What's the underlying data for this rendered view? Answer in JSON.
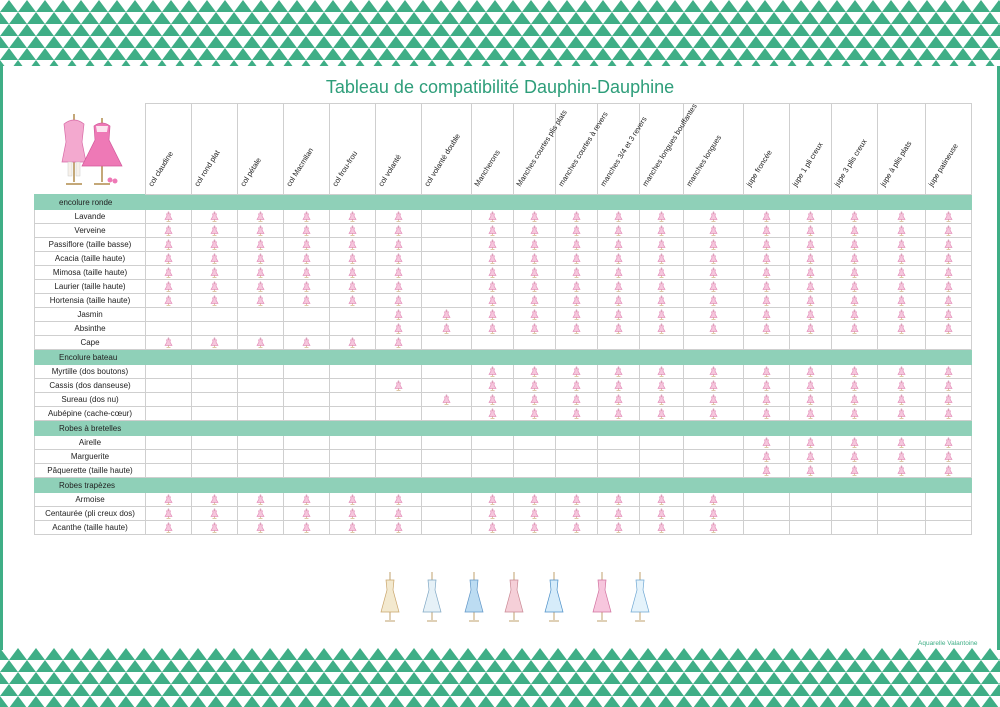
{
  "title": "Tableau de compatibilité Dauphin-Dauphine",
  "credit": "Aquarelle Valantoine",
  "colors": {
    "accent": "#3fae86",
    "section_bg": "#8fd0b8",
    "mark": "#e58bb5"
  },
  "icons": {
    "mark": "dress-form-icon",
    "header": "dress-mannequins-illustration",
    "footer": "dress-collection-illustration"
  },
  "columns": [
    "col claudine",
    "col rond plat",
    "col pétale",
    "col Macmilan",
    "col frou-frou",
    "col volanté",
    "col volanté double",
    "Mancherons",
    "Manches courtes plis plats",
    "manches courtes à revers",
    "manches 3/4 et 3 revers",
    "manches longues bouffantes",
    "manches longues",
    "jupe froncée",
    "jupe 1 pli creux",
    "jupe 3 plis creux",
    "jupe à plis plats",
    "jupe patineuse"
  ],
  "sections": [
    {
      "label": "encolure ronde",
      "rows": [
        {
          "name": "Lavande",
          "marks": [
            1,
            1,
            1,
            1,
            1,
            1,
            0,
            1,
            1,
            1,
            1,
            1,
            1,
            1,
            1,
            1,
            1,
            1
          ]
        },
        {
          "name": "Verveine",
          "marks": [
            1,
            1,
            1,
            1,
            1,
            1,
            0,
            1,
            1,
            1,
            1,
            1,
            1,
            1,
            1,
            1,
            1,
            1
          ]
        },
        {
          "name": "Passiflore (taille basse)",
          "marks": [
            1,
            1,
            1,
            1,
            1,
            1,
            0,
            1,
            1,
            1,
            1,
            1,
            1,
            1,
            1,
            1,
            1,
            1
          ]
        },
        {
          "name": "Acacia (taille haute)",
          "marks": [
            1,
            1,
            1,
            1,
            1,
            1,
            0,
            1,
            1,
            1,
            1,
            1,
            1,
            1,
            1,
            1,
            1,
            1
          ]
        },
        {
          "name": "Mimosa (taille haute)",
          "marks": [
            1,
            1,
            1,
            1,
            1,
            1,
            0,
            1,
            1,
            1,
            1,
            1,
            1,
            1,
            1,
            1,
            1,
            1
          ]
        },
        {
          "name": "Laurier (taille haute)",
          "marks": [
            1,
            1,
            1,
            1,
            1,
            1,
            0,
            1,
            1,
            1,
            1,
            1,
            1,
            1,
            1,
            1,
            1,
            1
          ]
        },
        {
          "name": "Hortensia (taille haute)",
          "marks": [
            1,
            1,
            1,
            1,
            1,
            1,
            0,
            1,
            1,
            1,
            1,
            1,
            1,
            1,
            1,
            1,
            1,
            1
          ]
        },
        {
          "name": "Jasmin",
          "marks": [
            0,
            0,
            0,
            0,
            0,
            1,
            1,
            1,
            1,
            1,
            1,
            1,
            1,
            1,
            1,
            1,
            1,
            1
          ]
        },
        {
          "name": "Absinthe",
          "marks": [
            0,
            0,
            0,
            0,
            0,
            1,
            1,
            1,
            1,
            1,
            1,
            1,
            1,
            1,
            1,
            1,
            1,
            1
          ]
        },
        {
          "name": "Cape",
          "marks": [
            1,
            1,
            1,
            1,
            1,
            1,
            0,
            0,
            0,
            0,
            0,
            0,
            0,
            0,
            0,
            0,
            0,
            0
          ]
        }
      ]
    },
    {
      "label": "Encolure bateau",
      "rows": [
        {
          "name": "Myrtille (dos boutons)",
          "marks": [
            0,
            0,
            0,
            0,
            0,
            0,
            0,
            1,
            1,
            1,
            1,
            1,
            1,
            1,
            1,
            1,
            1,
            1
          ]
        },
        {
          "name": "Cassis (dos danseuse)",
          "marks": [
            0,
            0,
            0,
            0,
            0,
            1,
            0,
            1,
            1,
            1,
            1,
            1,
            1,
            1,
            1,
            1,
            1,
            1
          ]
        },
        {
          "name": "Sureau (dos nu)",
          "marks": [
            0,
            0,
            0,
            0,
            0,
            0,
            1,
            1,
            1,
            1,
            1,
            1,
            1,
            1,
            1,
            1,
            1,
            1
          ]
        },
        {
          "name": "Aubépine (cache-cœur)",
          "marks": [
            0,
            0,
            0,
            0,
            0,
            0,
            0,
            1,
            1,
            1,
            1,
            1,
            1,
            1,
            1,
            1,
            1,
            1
          ]
        }
      ]
    },
    {
      "label": "Robes à bretelles",
      "rows": [
        {
          "name": "Airelle",
          "marks": [
            0,
            0,
            0,
            0,
            0,
            0,
            0,
            0,
            0,
            0,
            0,
            0,
            0,
            1,
            1,
            1,
            1,
            1
          ]
        },
        {
          "name": "Marguerite",
          "marks": [
            0,
            0,
            0,
            0,
            0,
            0,
            0,
            0,
            0,
            0,
            0,
            0,
            0,
            1,
            1,
            1,
            1,
            1
          ]
        },
        {
          "name": "Pâquerette (taille haute)",
          "marks": [
            0,
            0,
            0,
            0,
            0,
            0,
            0,
            0,
            0,
            0,
            0,
            0,
            0,
            1,
            1,
            1,
            1,
            1
          ]
        }
      ]
    },
    {
      "label": "Robes trapèzes",
      "rows": [
        {
          "name": "Armoise",
          "marks": [
            1,
            1,
            1,
            1,
            1,
            1,
            0,
            1,
            1,
            1,
            1,
            1,
            1,
            0,
            0,
            0,
            0,
            0
          ]
        },
        {
          "name": "Centaurée (pli creux dos)",
          "marks": [
            1,
            1,
            1,
            1,
            1,
            1,
            0,
            1,
            1,
            1,
            1,
            1,
            1,
            0,
            0,
            0,
            0,
            0
          ]
        },
        {
          "name": "Acanthe (taille haute)",
          "marks": [
            1,
            1,
            1,
            1,
            1,
            1,
            0,
            1,
            1,
            1,
            1,
            1,
            1,
            0,
            0,
            0,
            0,
            0
          ]
        }
      ]
    }
  ]
}
